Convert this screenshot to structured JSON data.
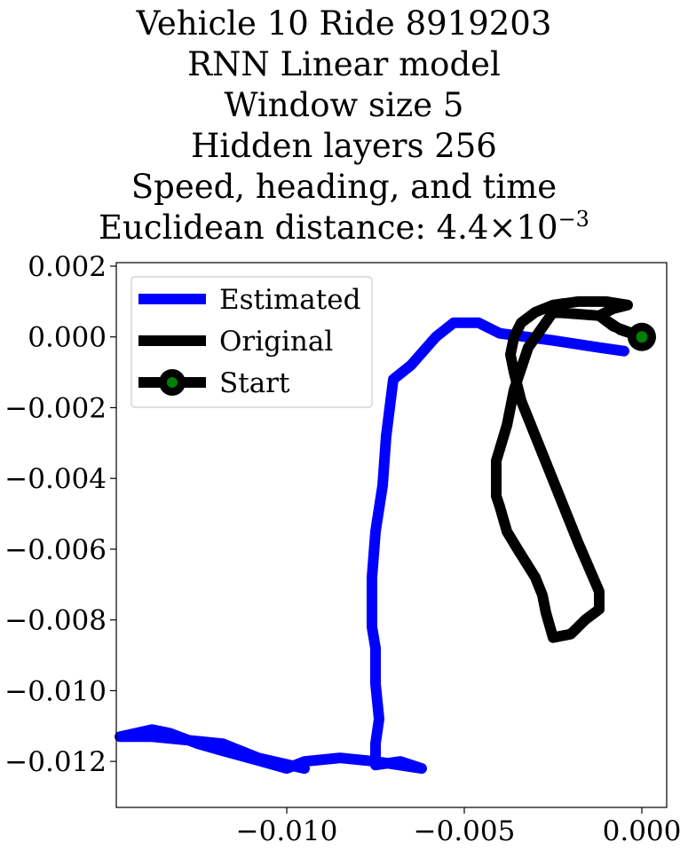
{
  "chart_data": {
    "type": "line",
    "title_lines": [
      "Vehicle 10 Ride 8919203",
      "RNN Linear model",
      "Window size 5",
      "Hidden layers 256",
      "Speed, heading, and time"
    ],
    "distance_label": "Euclidean distance: 4.4",
    "distance_times": "×",
    "distance_base": "10",
    "distance_exp": "−3",
    "xlabel": "",
    "ylabel": "",
    "xlim": [
      -0.0148,
      0.0007
    ],
    "ylim": [
      -0.0133,
      0.0021
    ],
    "x_ticks": [
      -0.01,
      -0.005,
      0.0
    ],
    "x_tick_labels": [
      "−0.010",
      "−0.005",
      "0.000"
    ],
    "y_ticks": [
      0.002,
      0.0,
      -0.002,
      -0.004,
      -0.006,
      -0.008,
      -0.01,
      -0.012
    ],
    "y_tick_labels": [
      "0.002",
      "0.000",
      "−0.002",
      "−0.004",
      "−0.006",
      "−0.008",
      "−0.010",
      "−0.012"
    ],
    "grid": false,
    "legend_position": "top-left",
    "series": [
      {
        "name": "Estimated",
        "color": "#0000ff",
        "x": [
          -0.0005,
          -0.0012,
          -0.0025,
          -0.004,
          -0.0046,
          -0.0053,
          -0.0058,
          -0.0065,
          -0.007,
          -0.0072,
          -0.0073,
          -0.0075,
          -0.0076,
          -0.0076,
          -0.0075,
          -0.0075,
          -0.0074,
          -0.0075,
          -0.0075,
          -0.0068,
          -0.0062,
          -0.0075,
          -0.0085,
          -0.0095,
          -0.01,
          -0.0107,
          -0.0118,
          -0.0125,
          -0.0133,
          -0.0138,
          -0.0147,
          -0.0138,
          -0.0128,
          -0.0118,
          -0.0108,
          -0.0095
        ],
        "y": [
          -0.0004,
          -0.0003,
          -0.0001,
          0.0001,
          0.0004,
          0.0004,
          0.0,
          -0.0008,
          -0.0012,
          -0.0028,
          -0.0042,
          -0.0055,
          -0.0068,
          -0.0082,
          -0.0088,
          -0.0098,
          -0.0108,
          -0.0115,
          -0.0121,
          -0.012,
          -0.0122,
          -0.012,
          -0.0119,
          -0.012,
          -0.0122,
          -0.012,
          -0.0117,
          -0.0115,
          -0.0112,
          -0.0111,
          -0.0113,
          -0.0113,
          -0.0114,
          -0.0115,
          -0.0119,
          -0.0122
        ]
      },
      {
        "name": "Original",
        "color": "#000000",
        "x": [
          0.0,
          -0.0006,
          -0.0012,
          -0.0025,
          -0.0032,
          -0.0036,
          -0.0038,
          -0.0041,
          -0.0041,
          -0.004,
          -0.0038,
          -0.0035,
          -0.003,
          -0.0028,
          -0.0027,
          -0.0025,
          -0.002,
          -0.0016,
          -0.0012,
          -0.0012,
          -0.0015,
          -0.0018,
          -0.0022,
          -0.0026,
          -0.003,
          -0.0034,
          -0.0036,
          -0.0037,
          -0.0036,
          -0.0034,
          -0.003,
          -0.0025,
          -0.0018,
          -0.001,
          -0.0004,
          -0.0008,
          -0.0012,
          -0.0008,
          0.0
        ],
        "y": [
          0.0,
          0.0002,
          0.0006,
          0.0007,
          -0.0003,
          -0.0015,
          -0.0025,
          -0.0035,
          -0.0045,
          -0.0048,
          -0.0055,
          -0.006,
          -0.0068,
          -0.0073,
          -0.0078,
          -0.0085,
          -0.0084,
          -0.008,
          -0.0077,
          -0.0072,
          -0.0065,
          -0.0058,
          -0.0048,
          -0.0038,
          -0.0028,
          -0.0018,
          -0.001,
          -0.0005,
          0.0,
          0.0004,
          0.0007,
          0.0009,
          0.001,
          0.001,
          0.0009,
          0.0008,
          0.0006,
          0.0003,
          0.0
        ]
      },
      {
        "name": "Start",
        "color": "#000000",
        "marker_color": "#008000",
        "x": [
          0.0
        ],
        "y": [
          0.0
        ]
      }
    ]
  }
}
